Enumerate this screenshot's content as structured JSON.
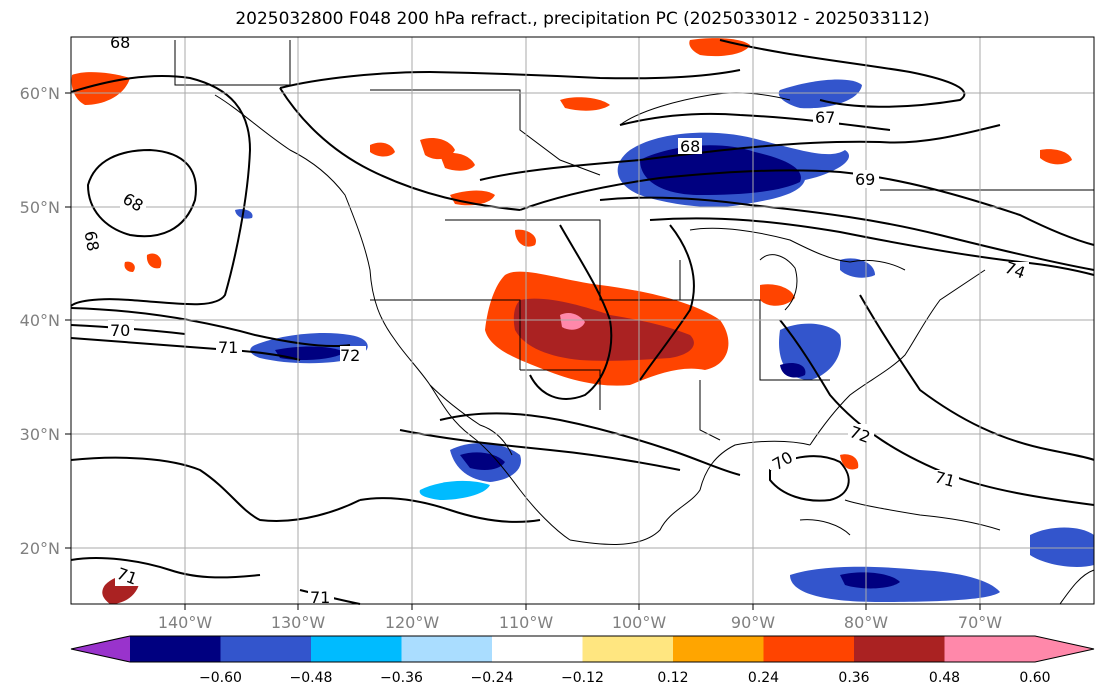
{
  "title": "2025032800 F048 200 hPa refract., precipitation PC (2025033012 - 2025033112)",
  "lat_labels": [
    "60°N",
    "50°N",
    "40°N",
    "30°N",
    "20°N"
  ],
  "lon_labels": [
    "140°W",
    "130°W",
    "120°W",
    "110°W",
    "100°W",
    "90°W",
    "80°W",
    "70°W"
  ],
  "contour_labels": [
    "68",
    "68",
    "68",
    "67",
    "69",
    "70",
    "71",
    "72",
    "72",
    "70",
    "71",
    "71",
    "71",
    "68",
    "74"
  ],
  "colorbar": {
    "tick_labels": [
      "−0.60",
      "−0.48",
      "−0.36",
      "−0.24",
      "−0.12",
      "0.12",
      "0.24",
      "0.36",
      "0.48",
      "0.60"
    ],
    "colors": [
      "#9933cc",
      "#000080",
      "#3355cc",
      "#00bbff",
      "#aaddff",
      "#ffffff",
      "#ffe680",
      "#ffa500",
      "#ff4400",
      "#aa2222",
      "#ff88aa"
    ]
  },
  "colors": {
    "grid": "#aaaaaa",
    "frame": "#000000",
    "tick_text": "#808080"
  }
}
